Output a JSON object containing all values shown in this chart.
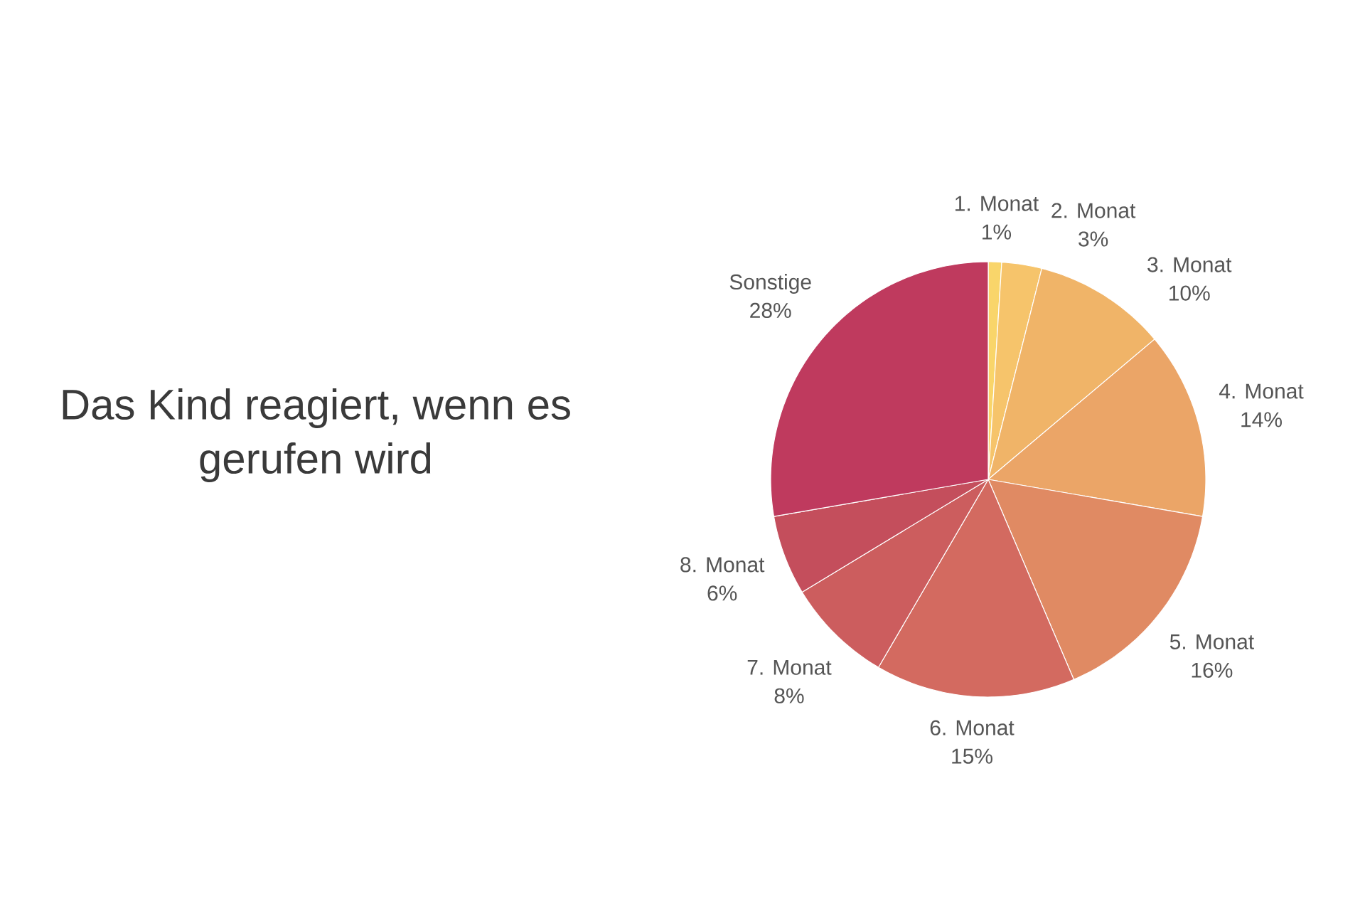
{
  "chart_data": {
    "type": "pie",
    "title": "Das Kind reagiert, wenn es gerufen wird",
    "categories": [
      "1. Monat",
      "2. Monat",
      "3. Monat",
      "4. Monat",
      "5. Monat",
      "6. Monat",
      "7. Monat",
      "8. Monat",
      "Sonstige"
    ],
    "values": [
      1,
      3,
      10,
      14,
      16,
      15,
      8,
      6,
      28
    ],
    "value_labels": [
      "1%",
      "3%",
      "10%",
      "14%",
      "16%",
      "15%",
      "8%",
      "6%",
      "28%"
    ],
    "colors": [
      "#f9d56a",
      "#f6c46b",
      "#f0b468",
      "#eba567",
      "#e08a63",
      "#d36a60",
      "#cc5d5e",
      "#c44e5c",
      "#bf3a5e"
    ]
  }
}
